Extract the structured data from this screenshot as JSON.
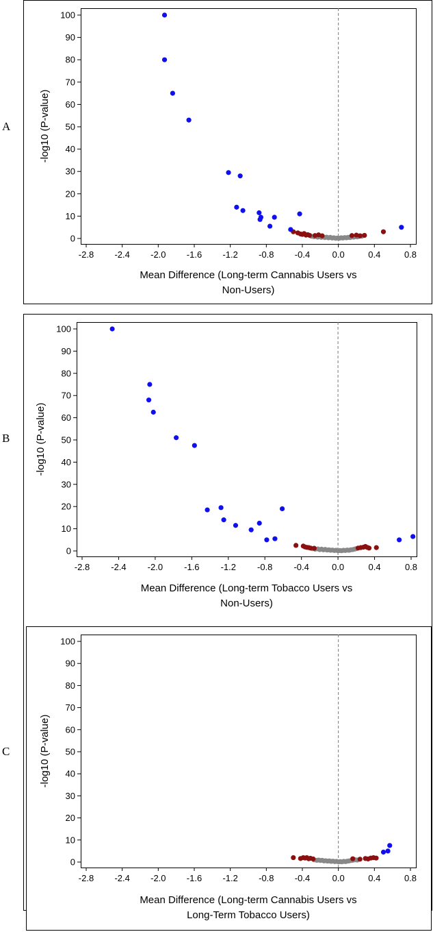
{
  "chart_data": [
    {
      "type": "scatter",
      "panel_label": "A",
      "xlabel_lines": [
        "Mean Difference (Long-term Cannabis Users vs",
        "Non-Users)"
      ],
      "ylabel": "-log10 (P-value)",
      "xlim": [
        -2.8,
        0.8
      ],
      "ylim": [
        0,
        100
      ],
      "x_ticks": [
        "-2.8",
        "-2.4",
        "-2.0",
        "-1.6",
        "-1.2",
        "-0.8",
        "-0.4",
        "0.0",
        "0.4",
        "0.8"
      ],
      "y_ticks": [
        "0",
        "10",
        "20",
        "30",
        "40",
        "50",
        "60",
        "70",
        "80",
        "90",
        "100"
      ],
      "reference_line_x": 0,
      "colors": {
        "significant_large": "#1010ee",
        "significant": "#8b1010",
        "not_significant": "#888888"
      },
      "series": [
        {
          "color": "#1010ee",
          "points": [
            [
              -1.93,
              100
            ],
            [
              -1.93,
              80
            ],
            [
              -1.84,
              65
            ],
            [
              -1.66,
              53
            ],
            [
              -1.22,
              29.5
            ],
            [
              -1.09,
              28
            ],
            [
              -1.13,
              14
            ],
            [
              -1.06,
              12.5
            ],
            [
              -0.88,
              11.5
            ],
            [
              -0.86,
              9.5
            ],
            [
              -0.87,
              8.5
            ],
            [
              -0.43,
              11
            ],
            [
              -0.71,
              9.5
            ],
            [
              -0.76,
              5.5
            ],
            [
              -0.53,
              4
            ],
            [
              0.7,
              5
            ]
          ]
        },
        {
          "color": "#8b1010",
          "points": [
            [
              -0.5,
              3
            ],
            [
              -0.45,
              2.5
            ],
            [
              -0.42,
              2
            ],
            [
              -0.4,
              1.8
            ],
            [
              -0.38,
              2.2
            ],
            [
              -0.36,
              1.5
            ],
            [
              -0.34,
              1.7
            ],
            [
              -0.32,
              1.4
            ],
            [
              -0.26,
              1.3
            ],
            [
              -0.22,
              1.6
            ],
            [
              -0.18,
              1.2
            ],
            [
              0.15,
              1.3
            ],
            [
              0.2,
              1.5
            ],
            [
              0.24,
              1.2
            ],
            [
              0.29,
              1.4
            ],
            [
              0.5,
              3
            ]
          ]
        },
        {
          "color": "#888888",
          "points": [
            [
              -0.3,
              1.0
            ],
            [
              -0.27,
              0.8
            ],
            [
              -0.25,
              0.9
            ],
            [
              -0.23,
              0.6
            ],
            [
              -0.21,
              0.8
            ],
            [
              -0.19,
              0.5
            ],
            [
              -0.17,
              0.7
            ],
            [
              -0.15,
              0.4
            ],
            [
              -0.13,
              0.6
            ],
            [
              -0.11,
              0.3
            ],
            [
              -0.09,
              0.5
            ],
            [
              -0.07,
              0.2
            ],
            [
              -0.05,
              0.3
            ],
            [
              -0.03,
              0.1
            ],
            [
              -0.01,
              0.2
            ],
            [
              0.01,
              0.1
            ],
            [
              0.03,
              0.3
            ],
            [
              0.05,
              0.2
            ],
            [
              0.07,
              0.4
            ],
            [
              0.09,
              0.3
            ],
            [
              0.11,
              0.5
            ],
            [
              0.13,
              0.4
            ],
            [
              0.15,
              0.7
            ],
            [
              0.17,
              0.6
            ],
            [
              0.19,
              0.8
            ],
            [
              0.21,
              0.7
            ],
            [
              0.23,
              0.9
            ],
            [
              0.26,
              1.0
            ]
          ]
        }
      ]
    },
    {
      "type": "scatter",
      "panel_label": "B",
      "xlabel_lines": [
        "Mean Difference (Long-term Tobacco Users vs",
        "Non-Users)"
      ],
      "ylabel": "-log10 (P-value)",
      "xlim": [
        -2.8,
        0.8
      ],
      "ylim": [
        0,
        100
      ],
      "x_ticks": [
        "-2.8",
        "-2.4",
        "-2.0",
        "-1.6",
        "-1.2",
        "-0.8",
        "-0.4",
        "0.0",
        "0.4",
        "0.8"
      ],
      "y_ticks": [
        "0",
        "10",
        "20",
        "30",
        "40",
        "50",
        "60",
        "70",
        "80",
        "90",
        "100"
      ],
      "reference_line_x": 0,
      "colors": {
        "significant_large": "#1010ee",
        "significant": "#8b1010",
        "not_significant": "#888888"
      },
      "series": [
        {
          "color": "#1010ee",
          "points": [
            [
              -2.47,
              100
            ],
            [
              -2.06,
              75
            ],
            [
              -2.07,
              68
            ],
            [
              -2.02,
              62.5
            ],
            [
              -1.77,
              51
            ],
            [
              -1.57,
              47.5
            ],
            [
              -1.43,
              18.5
            ],
            [
              -1.28,
              19.5
            ],
            [
              -1.25,
              14
            ],
            [
              -1.12,
              11.5
            ],
            [
              -0.95,
              9.5
            ],
            [
              -0.86,
              12.5
            ],
            [
              -0.78,
              5
            ],
            [
              -0.69,
              5.5
            ],
            [
              -0.61,
              19
            ],
            [
              0.67,
              5
            ],
            [
              0.82,
              6.5
            ]
          ]
        },
        {
          "color": "#8b1010",
          "points": [
            [
              -0.46,
              2.5
            ],
            [
              -0.38,
              2.2
            ],
            [
              -0.36,
              1.8
            ],
            [
              -0.34,
              1.6
            ],
            [
              -0.32,
              1.5
            ],
            [
              -0.3,
              1.3
            ],
            [
              -0.26,
              1.2
            ],
            [
              0.22,
              1.3
            ],
            [
              0.25,
              1.5
            ],
            [
              0.28,
              1.7
            ],
            [
              0.3,
              2.0
            ],
            [
              0.32,
              1.6
            ],
            [
              0.34,
              1.3
            ],
            [
              0.42,
              1.5
            ]
          ]
        },
        {
          "color": "#888888",
          "points": [
            [
              -0.28,
              1.0
            ],
            [
              -0.25,
              0.8
            ],
            [
              -0.22,
              0.9
            ],
            [
              -0.2,
              0.6
            ],
            [
              -0.18,
              0.8
            ],
            [
              -0.16,
              0.5
            ],
            [
              -0.14,
              0.7
            ],
            [
              -0.12,
              0.4
            ],
            [
              -0.1,
              0.5
            ],
            [
              -0.08,
              0.3
            ],
            [
              -0.06,
              0.4
            ],
            [
              -0.04,
              0.2
            ],
            [
              -0.02,
              0.3
            ],
            [
              0.0,
              0.1
            ],
            [
              0.02,
              0.2
            ],
            [
              0.04,
              0.1
            ],
            [
              0.06,
              0.3
            ],
            [
              0.08,
              0.2
            ],
            [
              0.1,
              0.4
            ],
            [
              0.12,
              0.3
            ],
            [
              0.14,
              0.5
            ],
            [
              0.16,
              0.6
            ],
            [
              0.18,
              0.8
            ],
            [
              0.2,
              1.0
            ]
          ]
        }
      ]
    },
    {
      "type": "scatter",
      "panel_label": "C",
      "xlabel_lines": [
        "Mean Difference (Long-term Cannabis Users vs",
        "Long-Term Tobacco Users)"
      ],
      "ylabel": "-log10 (P-value)",
      "xlim": [
        -2.8,
        0.8
      ],
      "ylim": [
        0,
        100
      ],
      "x_ticks": [
        "-2.8",
        "-2.4",
        "-2.0",
        "-1.6",
        "-1.2",
        "-0.8",
        "-0.4",
        "0.0",
        "0.4",
        "0.8"
      ],
      "y_ticks": [
        "0",
        "10",
        "20",
        "30",
        "40",
        "50",
        "60",
        "70",
        "80",
        "90",
        "100"
      ],
      "reference_line_x": 0,
      "colors": {
        "significant_large": "#1010ee",
        "significant": "#8b1010",
        "not_significant": "#888888"
      },
      "series": [
        {
          "color": "#1010ee",
          "points": [
            [
              0.5,
              4.5
            ],
            [
              0.55,
              5
            ],
            [
              0.57,
              7.5
            ]
          ]
        },
        {
          "color": "#8b1010",
          "points": [
            [
              -0.5,
              2
            ],
            [
              -0.42,
              1.6
            ],
            [
              -0.39,
              2
            ],
            [
              -0.37,
              1.8
            ],
            [
              -0.35,
              2
            ],
            [
              -0.33,
              1.5
            ],
            [
              -0.31,
              1.7
            ],
            [
              -0.28,
              1.4
            ],
            [
              0.16,
              1.5
            ],
            [
              0.24,
              1.3
            ],
            [
              0.3,
              1.6
            ],
            [
              0.33,
              1.4
            ],
            [
              0.36,
              1.8
            ],
            [
              0.39,
              2
            ],
            [
              0.42,
              1.8
            ]
          ]
        },
        {
          "color": "#888888",
          "points": [
            [
              -0.27,
              1.0
            ],
            [
              -0.24,
              0.8
            ],
            [
              -0.22,
              0.9
            ],
            [
              -0.2,
              0.7
            ],
            [
              -0.18,
              0.8
            ],
            [
              -0.16,
              0.5
            ],
            [
              -0.14,
              0.6
            ],
            [
              -0.12,
              0.4
            ],
            [
              -0.1,
              0.5
            ],
            [
              -0.08,
              0.3
            ],
            [
              -0.06,
              0.4
            ],
            [
              -0.04,
              0.2
            ],
            [
              -0.02,
              0.3
            ],
            [
              0.0,
              0.1
            ],
            [
              0.02,
              0.2
            ],
            [
              0.04,
              0.1
            ],
            [
              0.06,
              0.3
            ],
            [
              0.08,
              0.2
            ],
            [
              0.1,
              0.4
            ],
            [
              0.12,
              0.5
            ],
            [
              0.14,
              0.7
            ],
            [
              0.16,
              0.8
            ],
            [
              0.19,
              1.0
            ],
            [
              0.21,
              0.9
            ]
          ]
        }
      ]
    }
  ]
}
